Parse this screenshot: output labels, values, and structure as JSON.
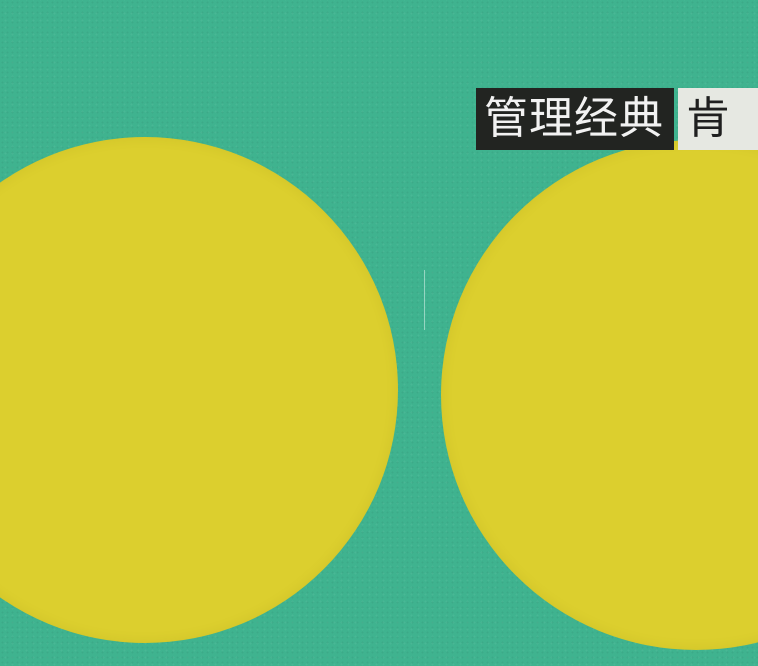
{
  "cover": {
    "series_label": "管理经典",
    "second_label": "肯"
  },
  "colors": {
    "background": "#3fb38f",
    "circle": "#dccf2e",
    "label_dark": "#222421",
    "label_light": "#e6e8e2"
  }
}
